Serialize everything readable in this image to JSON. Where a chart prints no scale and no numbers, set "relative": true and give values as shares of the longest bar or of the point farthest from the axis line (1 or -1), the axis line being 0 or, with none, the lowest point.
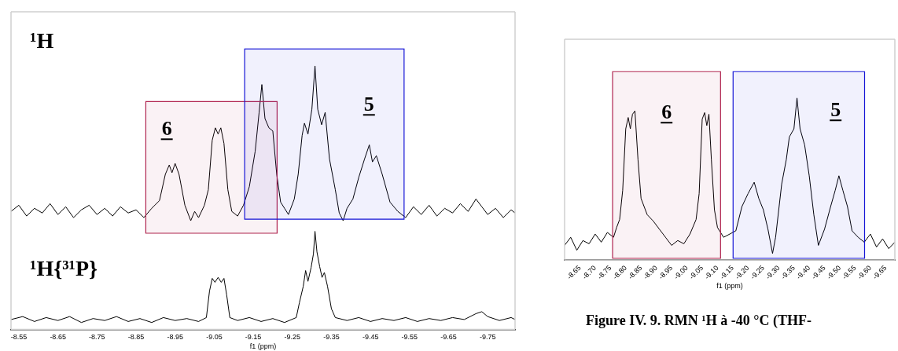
{
  "chart_data": [
    {
      "type": "line",
      "relative": true,
      "title": "¹H",
      "tick_labels": false,
      "xlim": [
        -8.53,
        -9.82
      ],
      "xticks": [
        -8.55,
        -8.65,
        -8.75,
        -8.85,
        -8.95,
        -9.05,
        -9.15,
        -9.25,
        -9.35,
        -9.45,
        -9.55,
        -9.65,
        -9.75
      ],
      "bands": [
        {
          "axis": "x",
          "from": -8.875,
          "to": -9.211,
          "label": "6",
          "color": "#b0244f"
        },
        {
          "axis": "x",
          "from": -9.128,
          "to": -9.536,
          "label": "5",
          "color": "#1515d6"
        }
      ],
      "series": [
        {
          "color": "#000000",
          "x": [
            -8.53,
            -8.55,
            -8.57,
            -8.59,
            -8.61,
            -8.63,
            -8.65,
            -8.67,
            -8.69,
            -8.71,
            -8.73,
            -8.75,
            -8.77,
            -8.79,
            -8.81,
            -8.83,
            -8.85,
            -8.87,
            -8.89,
            -8.91,
            -8.925,
            -8.935,
            -8.942,
            -8.95,
            -8.96,
            -8.975,
            -8.99,
            -9.0,
            -9.01,
            -9.025,
            -9.035,
            -9.045,
            -9.053,
            -9.06,
            -9.067,
            -9.075,
            -9.085,
            -9.095,
            -9.11,
            -9.125,
            -9.14,
            -9.155,
            -9.165,
            -9.172,
            -9.18,
            -9.19,
            -9.2,
            -9.21,
            -9.22,
            -9.23,
            -9.24,
            -9.255,
            -9.265,
            -9.275,
            -9.281,
            -9.29,
            -9.3,
            -9.308,
            -9.315,
            -9.325,
            -9.334,
            -9.345,
            -9.36,
            -9.37,
            -9.38,
            -9.39,
            -9.405,
            -9.42,
            -9.435,
            -9.447,
            -9.455,
            -9.465,
            -9.48,
            -9.5,
            -9.52,
            -9.54,
            -9.56,
            -9.58,
            -9.6,
            -9.62,
            -9.64,
            -9.66,
            -9.68,
            -9.7,
            -9.72,
            -9.735,
            -9.75,
            -9.77,
            -9.79,
            -9.81,
            -9.82
          ],
          "values": [
            0.06,
            0.1,
            0.03,
            0.08,
            0.05,
            0.11,
            0.04,
            0.09,
            0.02,
            0.07,
            0.1,
            0.04,
            0.08,
            0.03,
            0.09,
            0.05,
            0.07,
            0.02,
            0.08,
            0.13,
            0.3,
            0.36,
            0.31,
            0.37,
            0.3,
            0.1,
            0.0,
            0.06,
            0.02,
            0.1,
            0.2,
            0.52,
            0.6,
            0.56,
            0.6,
            0.5,
            0.2,
            0.06,
            0.03,
            0.1,
            0.22,
            0.45,
            0.7,
            0.88,
            0.66,
            0.6,
            0.58,
            0.3,
            0.12,
            0.08,
            0.04,
            0.14,
            0.3,
            0.55,
            0.63,
            0.56,
            0.72,
            1.0,
            0.72,
            0.62,
            0.7,
            0.4,
            0.2,
            0.05,
            0.0,
            0.08,
            0.14,
            0.28,
            0.4,
            0.49,
            0.38,
            0.42,
            0.3,
            0.12,
            0.06,
            0.02,
            0.09,
            0.04,
            0.1,
            0.03,
            0.08,
            0.05,
            0.11,
            0.06,
            0.14,
            0.09,
            0.04,
            0.08,
            0.02,
            0.07,
            0.05
          ]
        }
      ]
    },
    {
      "type": "line",
      "relative": true,
      "title": "¹H{³¹P}",
      "xlabel": "f1 (ppm)",
      "xlim": [
        -8.53,
        -9.82
      ],
      "xticks": [
        -8.55,
        -8.65,
        -8.75,
        -8.85,
        -8.95,
        -9.05,
        -9.15,
        -9.25,
        -9.35,
        -9.45,
        -9.55,
        -9.65,
        -9.75
      ],
      "series": [
        {
          "color": "#000000",
          "x": [
            -8.53,
            -8.56,
            -8.59,
            -8.62,
            -8.65,
            -8.68,
            -8.71,
            -8.74,
            -8.77,
            -8.8,
            -8.83,
            -8.86,
            -8.89,
            -8.92,
            -8.95,
            -8.98,
            -9.01,
            -9.03,
            -9.038,
            -9.045,
            -9.052,
            -9.06,
            -9.068,
            -9.075,
            -9.082,
            -9.09,
            -9.11,
            -9.14,
            -9.17,
            -9.2,
            -9.23,
            -9.26,
            -9.268,
            -9.278,
            -9.284,
            -9.29,
            -9.298,
            -9.304,
            -9.308,
            -9.313,
            -9.32,
            -9.326,
            -9.332,
            -9.34,
            -9.35,
            -9.36,
            -9.39,
            -9.42,
            -9.45,
            -9.48,
            -9.51,
            -9.54,
            -9.57,
            -9.6,
            -9.63,
            -9.66,
            -9.69,
            -9.72,
            -9.735,
            -9.75,
            -9.78,
            -9.81,
            -9.82
          ],
          "values": [
            0.1,
            0.13,
            0.08,
            0.12,
            0.09,
            0.13,
            0.07,
            0.11,
            0.09,
            0.13,
            0.08,
            0.11,
            0.07,
            0.12,
            0.09,
            0.11,
            0.08,
            0.12,
            0.39,
            0.52,
            0.48,
            0.53,
            0.48,
            0.52,
            0.35,
            0.12,
            0.09,
            0.12,
            0.08,
            0.11,
            0.07,
            0.12,
            0.27,
            0.44,
            0.6,
            0.49,
            0.63,
            0.77,
            1.0,
            0.79,
            0.64,
            0.53,
            0.58,
            0.44,
            0.21,
            0.12,
            0.09,
            0.12,
            0.08,
            0.11,
            0.09,
            0.12,
            0.08,
            0.11,
            0.09,
            0.12,
            0.1,
            0.16,
            0.18,
            0.13,
            0.09,
            0.12,
            0.1
          ]
        }
      ]
    },
    {
      "type": "line",
      "relative": true,
      "xlabel": "f1 (ppm)",
      "xlim": [
        -8.6,
        -9.68
      ],
      "xticks": [
        -8.65,
        {
          "value": -8.7,
          "label": "-8.70"
        },
        -8.75,
        {
          "value": -8.8,
          "label": "-8.80"
        },
        -8.85,
        {
          "value": -8.9,
          "label": "-8.90"
        },
        -8.95,
        {
          "value": -9.0,
          "label": "-9.00"
        },
        -9.05,
        {
          "value": -9.1,
          "label": "-9.10"
        },
        -9.15,
        {
          "value": -9.2,
          "label": "-9.20"
        },
        -9.25,
        {
          "value": -9.3,
          "label": "-9.30"
        },
        -9.35,
        {
          "value": -9.4,
          "label": "-9.40"
        },
        -9.45,
        {
          "value": -9.5,
          "label": "-9.50"
        },
        -9.55,
        {
          "value": -9.6,
          "label": "-9.60"
        },
        -9.65
      ],
      "bands": [
        {
          "axis": "x",
          "from": -8.757,
          "to": -9.11,
          "label": "6",
          "color": "#b0244f"
        },
        {
          "axis": "x",
          "from": -9.151,
          "to": -9.581,
          "label": "5",
          "color": "#1515d6"
        }
      ],
      "annotations": [
        "Figure IV. 9. RMN ¹H à -40 °C (THF-"
      ],
      "series": [
        {
          "color": "#000000",
          "x": [
            -8.6,
            -8.62,
            -8.64,
            -8.66,
            -8.68,
            -8.7,
            -8.72,
            -8.74,
            -8.76,
            -8.77,
            -8.78,
            -8.79,
            -8.8,
            -8.808,
            -8.815,
            -8.822,
            -8.83,
            -8.84,
            -8.85,
            -8.87,
            -8.89,
            -8.91,
            -8.93,
            -8.95,
            -8.97,
            -8.99,
            -9.01,
            -9.03,
            -9.04,
            -9.05,
            -9.058,
            -9.065,
            -9.072,
            -9.08,
            -9.09,
            -9.1,
            -9.12,
            -9.14,
            -9.16,
            -9.18,
            -9.2,
            -9.22,
            -9.235,
            -9.25,
            -9.265,
            -9.28,
            -9.29,
            -9.31,
            -9.325,
            -9.335,
            -9.35,
            -9.36,
            -9.37,
            -9.385,
            -9.4,
            -9.415,
            -9.43,
            -9.45,
            -9.47,
            -9.485,
            -9.497,
            -9.51,
            -9.525,
            -9.54,
            -9.56,
            -9.58,
            -9.6,
            -9.62,
            -9.64,
            -9.66,
            -9.68
          ],
          "values": [
            0.09,
            0.14,
            0.06,
            0.12,
            0.1,
            0.16,
            0.11,
            0.17,
            0.14,
            0.2,
            0.25,
            0.43,
            0.81,
            0.88,
            0.81,
            0.9,
            0.92,
            0.62,
            0.38,
            0.28,
            0.24,
            0.19,
            0.14,
            0.09,
            0.12,
            0.1,
            0.16,
            0.25,
            0.41,
            0.87,
            0.91,
            0.83,
            0.9,
            0.62,
            0.31,
            0.2,
            0.14,
            0.16,
            0.18,
            0.33,
            0.41,
            0.48,
            0.38,
            0.31,
            0.19,
            0.04,
            0.14,
            0.47,
            0.62,
            0.76,
            0.81,
            1.0,
            0.81,
            0.71,
            0.52,
            0.28,
            0.09,
            0.19,
            0.33,
            0.43,
            0.52,
            0.43,
            0.33,
            0.18,
            0.14,
            0.11,
            0.16,
            0.08,
            0.13,
            0.07,
            0.11
          ]
        }
      ]
    }
  ]
}
